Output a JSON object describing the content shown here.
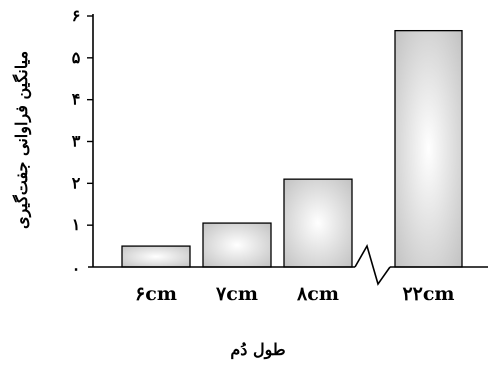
{
  "chart_data": {
    "type": "bar",
    "title": "",
    "xlabel": "طول دُم",
    "ylabel": "میانگین فراوانی جفت‌گیری",
    "categories": [
      "۶cm",
      "۷cm",
      "۸cm",
      "۲۲cm"
    ],
    "values": [
      0.5,
      1.05,
      2.1,
      5.65
    ],
    "ylim": [
      0,
      6
    ],
    "yticks": [
      0,
      1,
      2,
      3,
      4,
      5,
      6
    ],
    "ytick_labels": [
      "۰",
      "۱",
      "۲",
      "۳",
      "۴",
      "۵",
      "۶"
    ],
    "axis_break": "between ۸cm and ۲۲cm",
    "grid": false,
    "legend": "none"
  }
}
